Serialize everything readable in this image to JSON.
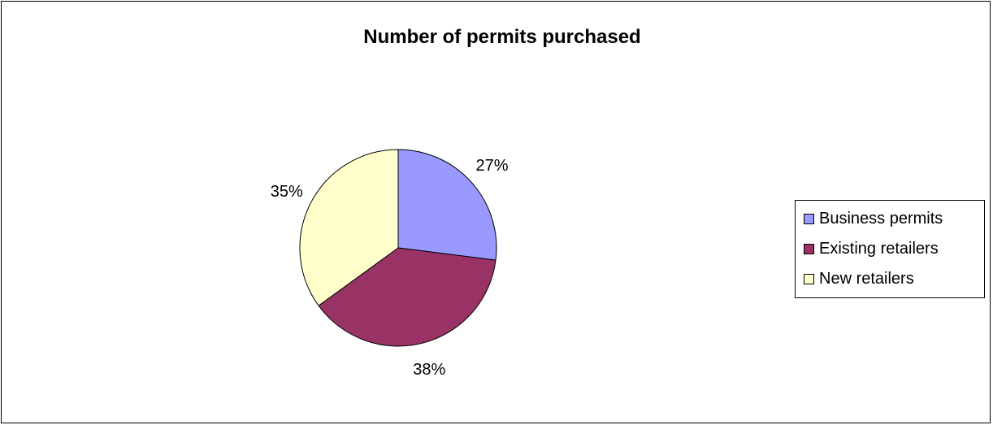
{
  "chart_data": {
    "type": "pie",
    "title": "Number of permits purchased",
    "categories": [
      "Business permits",
      "Existing retailers",
      "New retailers"
    ],
    "values": [
      27,
      38,
      35
    ],
    "value_labels": [
      "27%",
      "38%",
      "35%"
    ],
    "colors": [
      "#9999ff",
      "#993366",
      "#ffffcc"
    ],
    "legend_position": "right"
  }
}
